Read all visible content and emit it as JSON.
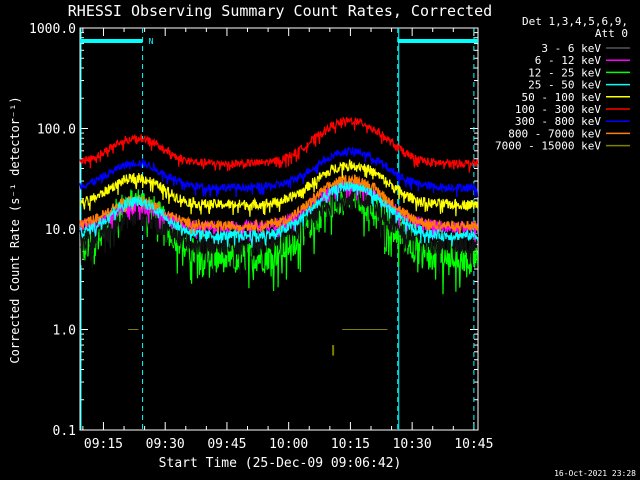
{
  "chart_data": {
    "type": "line",
    "title": "RHESSI Observing Summary Count Rates, Corrected",
    "xlabel": "Start Time (25-Dec-09 09:06:42)",
    "ylabel": "Corrected Count Rate (s⁻¹ detector⁻¹)",
    "yscale": "log",
    "ylim": [
      0.1,
      1000
    ],
    "xlim_minutes": [
      9.3,
      106
    ],
    "x_ticks": [
      {
        "m": 15,
        "label": "09:15"
      },
      {
        "m": 30,
        "label": "09:30"
      },
      {
        "m": 45,
        "label": "09:45"
      },
      {
        "m": 60,
        "label": "10:00"
      },
      {
        "m": 75,
        "label": "10:15"
      },
      {
        "m": 90,
        "label": "10:30"
      },
      {
        "m": 105,
        "label": "10:45"
      }
    ],
    "y_ticks": [
      {
        "v": 1000,
        "label": "1000.0"
      },
      {
        "v": 100,
        "label": "100.0"
      },
      {
        "v": 10,
        "label": "10.0"
      },
      {
        "v": 1,
        "label": "1.0"
      },
      {
        "v": 0.1,
        "label": "0.1"
      }
    ],
    "legend_header": [
      "Det 1,3,4,5,6,9,",
      "Att 0"
    ],
    "legend_position": "right",
    "timestamp": "16-Oct-2021 23:28",
    "flags": {
      "night_spans": [
        [
          9.3,
          24.5
        ],
        [
          86.5,
          106
        ]
      ],
      "night_boundaries": [
        24.5,
        86.5,
        105
      ],
      "saa_boundaries": [
        9.3,
        86.5
      ],
      "label": "N",
      "label_at": 25.5
    },
    "series": [
      {
        "name": "3 - 6 keV",
        "color": "#000000",
        "base": 7.5,
        "amp1": 1.9,
        "amp2": 2.8,
        "noise": 0.14
      },
      {
        "name": "6 - 12 keV",
        "color": "#ff00ff",
        "base": 10.5,
        "amp1": 1.55,
        "amp2": 2.6,
        "noise": 0.06
      },
      {
        "name": "12 - 25 keV",
        "color": "#00ff00",
        "base": 5.2,
        "amp1": 3.6,
        "amp2": 4.0,
        "noise": 0.15
      },
      {
        "name": "25 - 50 keV",
        "color": "#00ffff",
        "base": 8.6,
        "amp1": 2.2,
        "amp2": 3.1,
        "noise": 0.05
      },
      {
        "name": "50 - 100 keV",
        "color": "#ffff00",
        "base": 17.5,
        "amp1": 1.85,
        "amp2": 2.5,
        "noise": 0.05
      },
      {
        "name": "100 - 300 keV",
        "color": "#ff0000",
        "base": 45,
        "amp1": 1.8,
        "amp2": 2.65,
        "noise": 0.04
      },
      {
        "name": "300 - 800 keV",
        "color": "#0000ff",
        "base": 26,
        "amp1": 1.75,
        "amp2": 2.3,
        "noise": 0.04
      },
      {
        "name": "800 - 7000 keV",
        "color": "#ff7f00",
        "base": 10.8,
        "amp1": 1.8,
        "amp2": 2.9,
        "noise": 0.05
      },
      {
        "name": "7000 - 15000 keV",
        "color": "#808000",
        "base": 1.0,
        "amp1": 1.0,
        "amp2": 1.0,
        "noise": 0.0
      }
    ],
    "peaks_minutes": [
      23,
      75
    ],
    "olive_segments": [
      [
        21,
        23.5,
        1.0
      ],
      [
        73,
        84,
        1.0
      ],
      [
        70.8,
        70.8,
        0.62
      ]
    ]
  }
}
